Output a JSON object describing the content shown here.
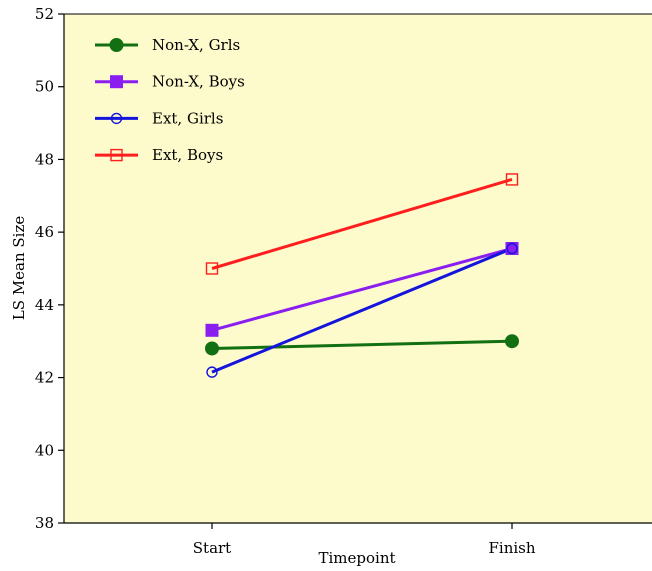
{
  "chart_data": {
    "type": "line",
    "title": "",
    "xlabel": "Timepoint",
    "ylabel": "LS Mean Size",
    "categories": [
      "Start",
      "Finish"
    ],
    "ylim": [
      38,
      52
    ],
    "yticks": [
      "38",
      "40",
      "42",
      "44",
      "46",
      "48",
      "50",
      "52"
    ],
    "background_color": "#fdfbcc",
    "grid": false,
    "legend_position": "top-left",
    "series": [
      {
        "name": "Non-X, Grls",
        "values": [
          42.8,
          43.0
        ],
        "color": "#127012",
        "marker": "filled-circle"
      },
      {
        "name": "Non-X, Boys",
        "values": [
          43.3,
          45.55
        ],
        "color": "#8a1ef0",
        "marker": "filled-square"
      },
      {
        "name": "Ext, Girls",
        "values": [
          42.15,
          45.55
        ],
        "color": "#1414dc",
        "marker": "open-circle"
      },
      {
        "name": "Ext, Boys",
        "values": [
          45.0,
          47.45
        ],
        "color": "#ff1e1e",
        "marker": "open-square"
      }
    ]
  }
}
